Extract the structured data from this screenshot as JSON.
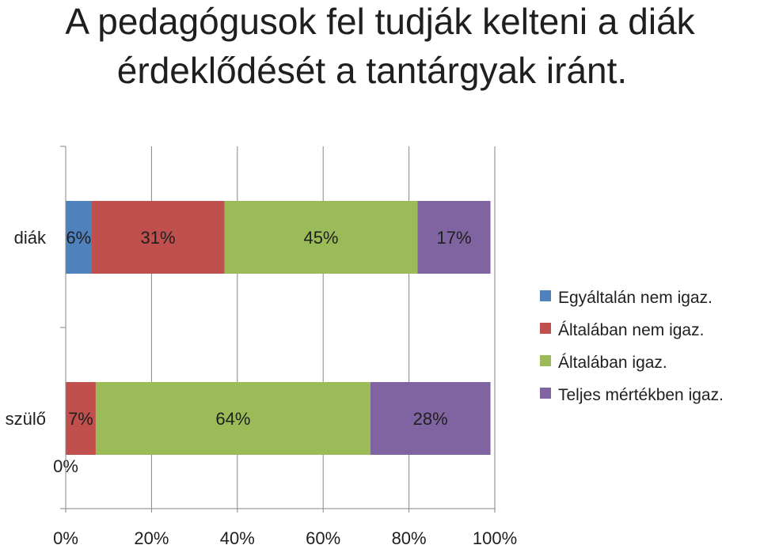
{
  "title_lines": [
    "A pedagógusok fel tudják kelteni a diák",
    "érdeklődését a tantárgyak iránt."
  ],
  "chart_data": {
    "type": "bar",
    "orientation": "horizontal",
    "stacked": "percent",
    "title": "A pedagógusok fel tudják kelteni a diák érdeklődését a tantárgyak iránt.",
    "categories": [
      "diák",
      "szülő"
    ],
    "series": [
      {
        "name": "Egyáltalán nem igaz.",
        "color": "#4F81BD",
        "values": [
          6,
          0
        ],
        "labels": [
          "6%",
          "0%"
        ]
      },
      {
        "name": "Általában nem igaz.",
        "color": "#C0504D",
        "values": [
          31,
          7
        ],
        "labels": [
          "31%",
          "7%"
        ]
      },
      {
        "name": "Általában igaz.",
        "color": "#9BBB59",
        "values": [
          45,
          64
        ],
        "labels": [
          "45%",
          "64%"
        ]
      },
      {
        "name": "Teljes mértékben igaz.",
        "color": "#8064A2",
        "values": [
          17,
          28
        ],
        "labels": [
          "17%",
          "28%"
        ]
      }
    ],
    "xlim": [
      0,
      100
    ],
    "xticks": [
      "0%",
      "20%",
      "40%",
      "60%",
      "80%",
      "100%"
    ],
    "grid": true,
    "legend": "right"
  }
}
